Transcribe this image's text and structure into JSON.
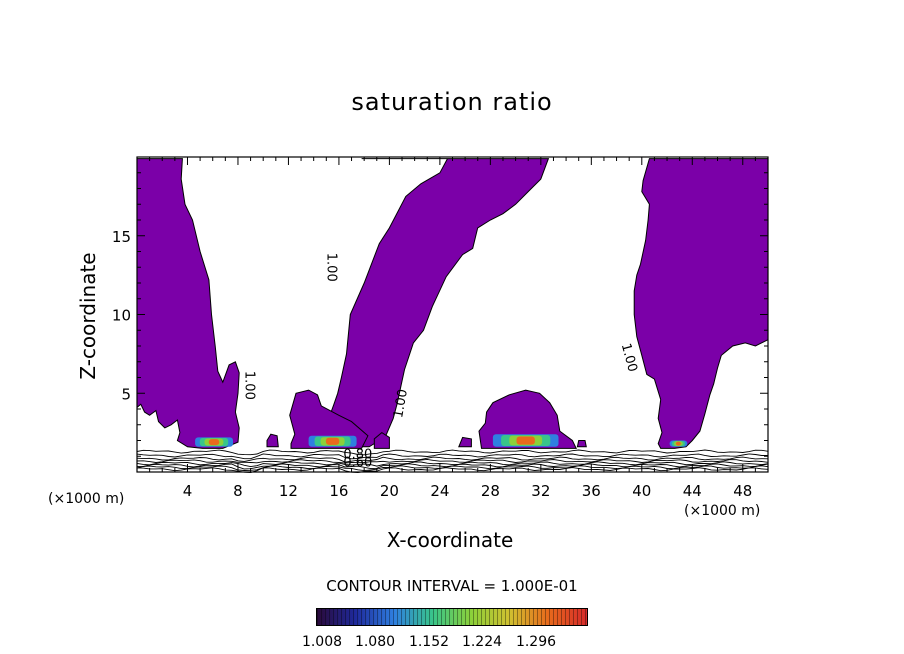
{
  "chart_data": {
    "type": "heatmap",
    "title": "saturation ratio",
    "xlabel": "X-coordinate",
    "ylabel": "Z-coordinate",
    "x_unit_label": "(×1000 m)",
    "xlim": [
      0,
      50
    ],
    "ylim": [
      0,
      20
    ],
    "x_ticks": [
      4,
      8,
      12,
      16,
      20,
      24,
      28,
      32,
      36,
      40,
      44,
      48
    ],
    "y_ticks": [
      5,
      10,
      15
    ],
    "contour_labels": [
      "1.00",
      "1.00",
      "1.00",
      "1.00",
      "0.80",
      "0.60"
    ],
    "contour_interval_text": "CONTOUR INTERVAL = 1.000E-01",
    "colorbar": {
      "ticks": [
        "1.008",
        "1.080",
        "1.152",
        "1.224",
        "1.296"
      ],
      "colors": [
        "#2a0a3a",
        "#1f2a9c",
        "#2f7fe0",
        "#39c58a",
        "#8cd03a",
        "#d0c030",
        "#e86a1c",
        "#d62a2a"
      ]
    },
    "fill_color": "#7b00a8",
    "regions": [
      {
        "name": "left plume",
        "pts": [
          [
            0,
            19.9
          ],
          [
            3.6,
            19.9
          ],
          [
            3.5,
            18.6
          ],
          [
            3.8,
            17
          ],
          [
            4.4,
            16
          ],
          [
            5,
            14
          ],
          [
            5.7,
            12.2
          ],
          [
            5.9,
            10
          ],
          [
            6.2,
            8
          ],
          [
            6.4,
            6.4
          ],
          [
            6.8,
            5.7
          ],
          [
            7.3,
            6.8
          ],
          [
            7.8,
            7
          ],
          [
            8.1,
            6.3
          ],
          [
            8.0,
            5.0
          ],
          [
            7.8,
            3.8
          ],
          [
            8.1,
            2.8
          ],
          [
            8.0,
            1.9
          ],
          [
            6.8,
            1.5
          ],
          [
            5.2,
            1.5
          ],
          [
            4.0,
            1.6
          ],
          [
            3.2,
            2.0
          ],
          [
            3.4,
            2.5
          ],
          [
            3.2,
            3.3
          ],
          [
            2.7,
            3.0
          ],
          [
            2.2,
            2.8
          ],
          [
            1.7,
            3.2
          ],
          [
            1.5,
            3.9
          ],
          [
            1.0,
            3.6
          ],
          [
            0.6,
            3.8
          ],
          [
            0.3,
            4.3
          ],
          [
            0,
            4.1
          ]
        ]
      },
      {
        "name": "central plume",
        "pts": [
          [
            17.8,
            19.9
          ],
          [
            24.6,
            19.9
          ],
          [
            24.0,
            19.0
          ],
          [
            22.5,
            18.3
          ],
          [
            21.3,
            17.5
          ],
          [
            20.0,
            15.5
          ],
          [
            19.2,
            14.5
          ],
          [
            18.0,
            12.0
          ],
          [
            16.9,
            10.0
          ],
          [
            16.6,
            7.5
          ],
          [
            16.2,
            6.0
          ],
          [
            15.9,
            5.0
          ],
          [
            15.6,
            4.3
          ],
          [
            15.1,
            3.2
          ],
          [
            15.6,
            2.2
          ],
          [
            16.9,
            1.6
          ],
          [
            18.4,
            1.6
          ],
          [
            19.2,
            2.0
          ],
          [
            19.5,
            1.9
          ],
          [
            20.3,
            3.4
          ],
          [
            20.6,
            4.3
          ],
          [
            21.2,
            6.5
          ],
          [
            21.9,
            8.2
          ],
          [
            22.7,
            9.0
          ],
          [
            23.4,
            10.5
          ],
          [
            24.5,
            12.4
          ],
          [
            25.8,
            13.8
          ],
          [
            26.6,
            14.2
          ],
          [
            27.0,
            15.5
          ],
          [
            28.0,
            16.0
          ],
          [
            29.0,
            16.4
          ],
          [
            30.0,
            17.0
          ],
          [
            31.0,
            17.8
          ],
          [
            32.0,
            18.6
          ],
          [
            32.6,
            19.9
          ]
        ]
      },
      {
        "name": "central base",
        "pts": [
          [
            12.2,
            1.5
          ],
          [
            14.0,
            1.5
          ],
          [
            16.0,
            1.5
          ],
          [
            17.8,
            1.5
          ],
          [
            18.3,
            2.3
          ],
          [
            17.0,
            3.2
          ],
          [
            16.0,
            3.6
          ],
          [
            14.6,
            4.2
          ],
          [
            14.3,
            4.9
          ],
          [
            13.6,
            5.2
          ],
          [
            12.6,
            5.0
          ],
          [
            12.1,
            3.6
          ],
          [
            12.5,
            2.4
          ],
          [
            12.2,
            1.8
          ]
        ]
      },
      {
        "name": "right plume",
        "pts": [
          [
            40.6,
            19.9
          ],
          [
            50,
            19.9
          ],
          [
            50,
            8.4
          ],
          [
            49.0,
            8.0
          ],
          [
            48.2,
            8.2
          ],
          [
            47.2,
            8.0
          ],
          [
            46.3,
            7.4
          ],
          [
            46.0,
            6.6
          ],
          [
            45.7,
            5.6
          ],
          [
            45.4,
            4.9
          ],
          [
            45.0,
            3.7
          ],
          [
            44.6,
            2.6
          ],
          [
            44.0,
            2.0
          ],
          [
            43.5,
            1.6
          ],
          [
            42.6,
            1.5
          ],
          [
            41.5,
            1.5
          ],
          [
            41.3,
            1.8
          ],
          [
            41.6,
            2.5
          ],
          [
            41.3,
            3.4
          ],
          [
            41.5,
            4.6
          ],
          [
            41.0,
            5.9
          ],
          [
            40.4,
            6.2
          ],
          [
            40.0,
            7.4
          ],
          [
            39.6,
            8.6
          ],
          [
            39.4,
            10.0
          ],
          [
            39.4,
            11.5
          ],
          [
            39.6,
            12.5
          ],
          [
            39.9,
            13.2
          ],
          [
            40.3,
            14.7
          ],
          [
            40.5,
            16.0
          ],
          [
            40.6,
            17.0
          ],
          [
            40.0,
            17.8
          ],
          [
            40.1,
            18.5
          ],
          [
            40.6,
            19.9
          ]
        ]
      },
      {
        "name": "bubble",
        "pts": [
          [
            27.3,
            1.5
          ],
          [
            34.8,
            1.5
          ],
          [
            34.5,
            2.0
          ],
          [
            33.5,
            2.6
          ],
          [
            33.3,
            3.6
          ],
          [
            32.7,
            4.4
          ],
          [
            31.9,
            5.0
          ],
          [
            30.8,
            5.2
          ],
          [
            29.5,
            4.9
          ],
          [
            28.2,
            4.4
          ],
          [
            27.7,
            3.8
          ],
          [
            27.6,
            3.1
          ],
          [
            27.1,
            2.6
          ],
          [
            27.3,
            1.5
          ]
        ]
      },
      {
        "name": "blob a",
        "pts": [
          [
            10.3,
            1.6
          ],
          [
            11.2,
            1.6
          ],
          [
            11.1,
            2.3
          ],
          [
            10.6,
            2.4
          ],
          [
            10.3,
            2.0
          ]
        ]
      },
      {
        "name": "blob b",
        "pts": [
          [
            18.8,
            1.5
          ],
          [
            20.0,
            1.5
          ],
          [
            20.0,
            2.2
          ],
          [
            19.4,
            2.5
          ],
          [
            18.8,
            2.1
          ]
        ]
      },
      {
        "name": "blob c",
        "pts": [
          [
            25.5,
            1.6
          ],
          [
            26.5,
            1.6
          ],
          [
            26.5,
            2.1
          ],
          [
            25.8,
            2.2
          ]
        ]
      },
      {
        "name": "blob d",
        "pts": [
          [
            34.9,
            1.6
          ],
          [
            35.6,
            1.6
          ],
          [
            35.5,
            2.0
          ],
          [
            35.0,
            2.0
          ]
        ]
      }
    ],
    "hot_bands": [
      {
        "x0": 4.6,
        "x1": 7.6,
        "z0": 1.6,
        "z1": 2.2
      },
      {
        "x0": 13.6,
        "x1": 17.4,
        "z0": 1.6,
        "z1": 2.3
      },
      {
        "x0": 28.2,
        "x1": 33.4,
        "z0": 1.6,
        "z1": 2.4
      },
      {
        "x0": 42.2,
        "x1": 43.6,
        "z0": 1.6,
        "z1": 2.0
      }
    ]
  }
}
